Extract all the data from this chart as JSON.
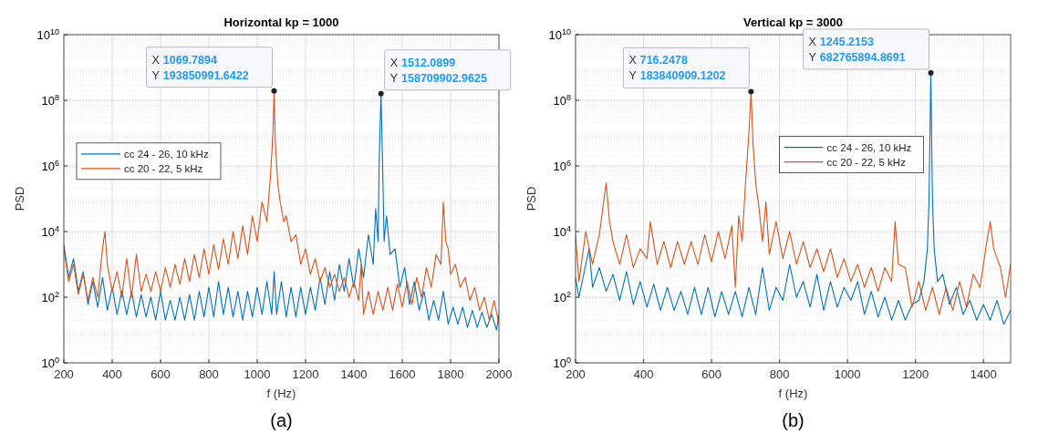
{
  "chart_data": [
    {
      "type": "line",
      "title": "Horizontal kp = 1000",
      "xlabel": "f (Hz)",
      "ylabel": "PSD",
      "log": "y",
      "grid": true,
      "legend": "left",
      "xlim": [
        200,
        2000
      ],
      "xticks": [
        200,
        400,
        600,
        800,
        1000,
        1200,
        1400,
        1600,
        1800,
        2000
      ],
      "ylim": [
        1,
        10000000000
      ],
      "yticks": [
        {
          "value": 1,
          "label": "10$^{0}$"
        },
        {
          "value": 100,
          "label": "10$^{2}$"
        },
        {
          "value": 10000,
          "label": "10$^{4}$"
        },
        {
          "value": 1000000,
          "label": "10$^{6}$"
        },
        {
          "value": 100000000,
          "label": "10$^{8}$"
        },
        {
          "value": 10000000000,
          "label": "10$^{10}$"
        }
      ],
      "annotations": [
        {
          "text": "X 1069.7894\nY 193850991.6422",
          "x": 1069.7894,
          "y": 193850991.6422
        },
        {
          "text": "X 1512.0899\nY 158709902.9625",
          "x": 1512.0899,
          "y": 158709902.9625
        },
        "(a)"
      ],
      "series": [
        {
          "name": "cc 24 - 26, 10 kHz",
          "color": "#0072bd",
          "x": [
            200,
            220,
            240,
            260,
            280,
            300,
            320,
            340,
            360,
            380,
            400,
            420,
            440,
            460,
            480,
            500,
            520,
            540,
            560,
            580,
            600,
            620,
            640,
            660,
            680,
            700,
            720,
            740,
            760,
            780,
            800,
            820,
            840,
            860,
            880,
            900,
            920,
            940,
            960,
            980,
            1000,
            1020,
            1040,
            1060,
            1070,
            1080,
            1100,
            1120,
            1140,
            1160,
            1180,
            1200,
            1220,
            1240,
            1260,
            1280,
            1300,
            1320,
            1340,
            1360,
            1380,
            1400,
            1420,
            1440,
            1460,
            1480,
            1490,
            1500,
            1505,
            1512.0899,
            1518,
            1525,
            1535,
            1550,
            1570,
            1590,
            1610,
            1630,
            1650,
            1670,
            1690,
            1710,
            1730,
            1750,
            1770,
            1790,
            1810,
            1830,
            1850,
            1870,
            1890,
            1910,
            1930,
            1950,
            1970,
            1990,
            2000
          ],
          "values": [
            4000,
            400,
            1500,
            150,
            600,
            60,
            300,
            50,
            400,
            40,
            200,
            30,
            150,
            30,
            150,
            25,
            120,
            25,
            100,
            20,
            150,
            20,
            80,
            20,
            100,
            20,
            120,
            20,
            150,
            25,
            200,
            25,
            300,
            30,
            200,
            25,
            150,
            20,
            150,
            25,
            200,
            30,
            300,
            30,
            600,
            30,
            300,
            25,
            200,
            25,
            200,
            30,
            200,
            40,
            400,
            60,
            600,
            80,
            1000,
            150,
            1500,
            200,
            3000,
            400,
            8000,
            1000,
            50000,
            5000,
            2000000,
            158709902.9625,
            2000000,
            5000,
            30000,
            2000,
            3000,
            200,
            800,
            60,
            300,
            40,
            150,
            20,
            80,
            20,
            150,
            15,
            50,
            15,
            50,
            12,
            40,
            12,
            35,
            12,
            30,
            10,
            30
          ]
        },
        {
          "name": "cc 20 - 22, 5 kHz",
          "color": "#d95319",
          "x": [
            200,
            220,
            240,
            260,
            280,
            300,
            320,
            340,
            360,
            370,
            380,
            400,
            420,
            440,
            460,
            480,
            500,
            520,
            540,
            560,
            580,
            600,
            620,
            640,
            660,
            680,
            700,
            720,
            740,
            760,
            780,
            800,
            820,
            840,
            860,
            880,
            900,
            920,
            940,
            960,
            980,
            1000,
            1020,
            1040,
            1055,
            1065,
            1069.7894,
            1075,
            1085,
            1095,
            1110,
            1120,
            1140,
            1160,
            1180,
            1200,
            1220,
            1240,
            1260,
            1280,
            1300,
            1320,
            1340,
            1360,
            1380,
            1400,
            1420,
            1430,
            1440,
            1460,
            1480,
            1500,
            1520,
            1540,
            1560,
            1580,
            1600,
            1620,
            1640,
            1660,
            1680,
            1700,
            1720,
            1740,
            1760,
            1770,
            1780,
            1790,
            1800,
            1820,
            1840,
            1860,
            1880,
            1900,
            1920,
            1940,
            1960,
            1980,
            2000
          ],
          "values": [
            3000,
            300,
            1000,
            120,
            500,
            80,
            400,
            100,
            3000,
            10000,
            1000,
            150,
            600,
            100,
            1500,
            100,
            2000,
            150,
            500,
            150,
            600,
            150,
            800,
            200,
            1000,
            250,
            1500,
            300,
            2000,
            400,
            3000,
            500,
            4000,
            700,
            6000,
            1000,
            10000,
            1500,
            15000,
            2000,
            30000,
            5000,
            80000,
            20000,
            500000,
            10000000,
            193850991.6422,
            5000000,
            300000,
            80000,
            20000,
            30000,
            5000,
            8000,
            1000,
            3000,
            500,
            1500,
            300,
            800,
            200,
            500,
            150,
            400,
            100,
            300,
            80,
            1000,
            30,
            150,
            30,
            150,
            40,
            200,
            40,
            250,
            50,
            300,
            60,
            400,
            100,
            800,
            200,
            2000,
            1000,
            80000,
            5000,
            3000,
            500,
            1000,
            200,
            400,
            80,
            200,
            40,
            100,
            20,
            80,
            15
          ]
        }
      ]
    },
    {
      "type": "line",
      "title": "Vertical kp = 3000",
      "xlabel": "f (Hz)",
      "ylabel": "PSD",
      "log": "y",
      "grid": true,
      "legend": "top right",
      "xlim": [
        200,
        1480
      ],
      "xticks": [
        200,
        400,
        600,
        800,
        1000,
        1200,
        1400
      ],
      "ylim": [
        1,
        10000000000
      ],
      "yticks": [
        {
          "value": 1,
          "label": "10$^{0}$"
        },
        {
          "value": 100,
          "label": "10$^{2}$"
        },
        {
          "value": 10000,
          "label": "10$^{4}$"
        },
        {
          "value": 1000000,
          "label": "10$^{6}$"
        },
        {
          "value": 100000000,
          "label": "10$^{8}$"
        },
        {
          "value": 10000000000,
          "label": "10$^{10}$"
        }
      ],
      "annotations": [
        {
          "text": "X 716.2478\nY 183840909.1202",
          "x": 716.2478,
          "y": 183840909.1202
        },
        {
          "text": "X 1245.2153\nY 682765894.8691",
          "x": 1245.2153,
          "y": 682765894.8691
        },
        "(b)"
      ],
      "series": [
        {
          "name": "cc 24 - 26, 10 kHz",
          "color": "#0072bd",
          "x": [
            200,
            210,
            230,
            240,
            250,
            270,
            290,
            310,
            330,
            350,
            370,
            390,
            410,
            430,
            450,
            470,
            490,
            510,
            530,
            550,
            570,
            590,
            610,
            630,
            650,
            670,
            690,
            710,
            730,
            750,
            770,
            790,
            810,
            830,
            850,
            870,
            890,
            910,
            930,
            950,
            970,
            990,
            1010,
            1030,
            1050,
            1070,
            1090,
            1110,
            1130,
            1150,
            1170,
            1190,
            1210,
            1225,
            1235,
            1240,
            1245.2153,
            1250,
            1255,
            1265,
            1280,
            1300,
            1320,
            1340,
            1360,
            1380,
            1400,
            1420,
            1440,
            1460,
            1480
          ],
          "values": [
            400,
            100,
            1000,
            3000,
            200,
            800,
            150,
            500,
            80,
            600,
            60,
            300,
            50,
            250,
            40,
            200,
            40,
            150,
            30,
            200,
            30,
            200,
            25,
            150,
            30,
            150,
            25,
            200,
            30,
            800,
            40,
            200,
            80,
            1000,
            100,
            300,
            50,
            500,
            40,
            300,
            50,
            200,
            80,
            300,
            30,
            150,
            25,
            100,
            20,
            80,
            20,
            60,
            80,
            300,
            3000,
            100000,
            682765894.8691,
            100000,
            3000,
            300,
            500,
            60,
            200,
            30,
            80,
            20,
            60,
            20,
            80,
            15,
            40
          ]
        },
        {
          "name": "cc 20 - 22, 5 kHz",
          "color": "#d95319",
          "x": [
            200,
            210,
            230,
            250,
            270,
            280,
            290,
            300,
            310,
            330,
            350,
            370,
            390,
            410,
            420,
            440,
            460,
            480,
            500,
            520,
            540,
            560,
            580,
            600,
            620,
            640,
            660,
            670,
            680,
            690,
            700,
            710,
            716.2478,
            722,
            730,
            740,
            750,
            760,
            770,
            790,
            810,
            830,
            850,
            870,
            890,
            910,
            930,
            950,
            970,
            990,
            1010,
            1030,
            1050,
            1070,
            1090,
            1110,
            1130,
            1140,
            1150,
            1170,
            1190,
            1210,
            1230,
            1250,
            1270,
            1290,
            1310,
            1330,
            1350,
            1370,
            1390,
            1410,
            1420,
            1430,
            1450,
            1465,
            1480
          ],
          "values": [
            8000,
            300,
            10000,
            1000,
            8000,
            50000,
            300000,
            20000,
            5000,
            1000,
            8000,
            800,
            3000,
            1500,
            20000,
            1000,
            5000,
            800,
            5000,
            1000,
            5000,
            1000,
            8000,
            1200,
            10000,
            1500,
            15000,
            200,
            30000,
            5000,
            300000,
            10000000,
            183840909.1202,
            5000000,
            300000,
            50000,
            5000,
            80000,
            2000,
            20000,
            1500,
            10000,
            1000,
            5000,
            800,
            3000,
            600,
            3000,
            400,
            1500,
            300,
            1000,
            200,
            800,
            150,
            800,
            300,
            20000,
            1000,
            800,
            50,
            300,
            40,
            200,
            30,
            200,
            40,
            300,
            50,
            500,
            200,
            5000,
            20000,
            3000,
            800,
            100,
            1000
          ]
        }
      ]
    }
  ]
}
